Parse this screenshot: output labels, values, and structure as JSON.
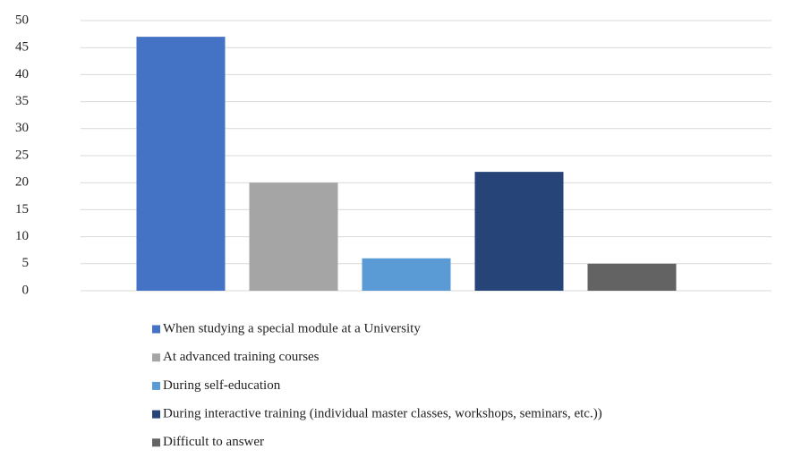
{
  "chart_data": {
    "type": "bar",
    "series": [
      {
        "name": "When studying a special module at a University",
        "color": "#4472c4",
        "values": [
          47
        ]
      },
      {
        "name": "At advanced training courses",
        "color": "#a5a5a5",
        "values": [
          20
        ]
      },
      {
        "name": "During self-education",
        "color": "#5b9bd5",
        "values": [
          6
        ]
      },
      {
        "name": "During interactive training (individual master classes, workshops, seminars, etc.))",
        "color": "#264478",
        "values": [
          22
        ]
      },
      {
        "name": "Difficult to answer",
        "color": "#636363",
        "values": [
          5
        ]
      }
    ],
    "ylim": [
      0,
      50
    ],
    "yticks": [
      0,
      5,
      10,
      15,
      20,
      25,
      30,
      35,
      40,
      45,
      50
    ],
    "grid": true,
    "legend": "bottom"
  }
}
